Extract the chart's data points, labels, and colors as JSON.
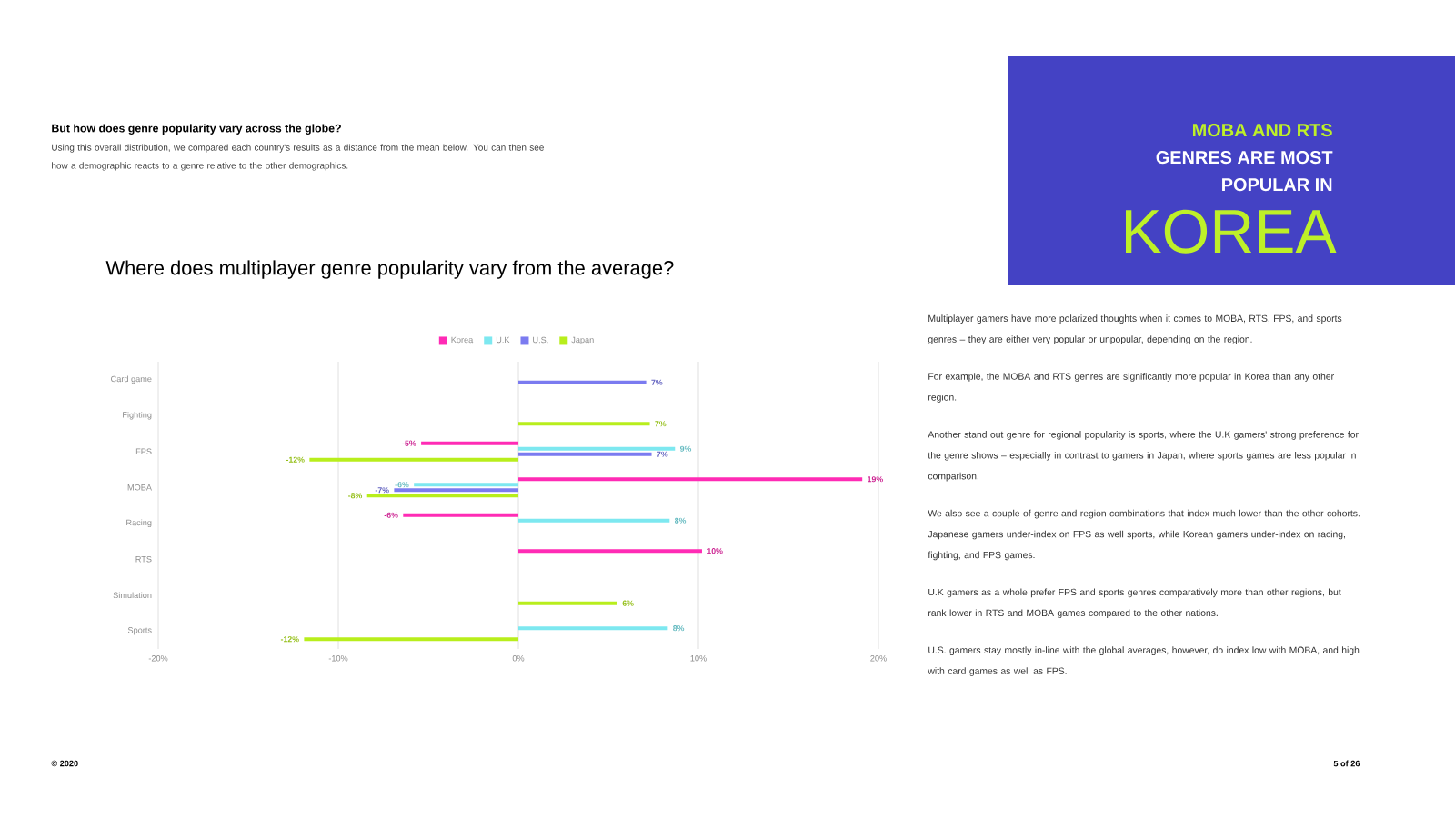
{
  "chart_data": {
    "type": "bar",
    "orientation": "horizontal",
    "title": "Where does multiplayer genre popularity vary from the average?",
    "categories": [
      "Card game",
      "Fighting",
      "FPS",
      "MOBA",
      "Racing",
      "RTS",
      "Simulation",
      "Sports"
    ],
    "series": [
      {
        "name": "Korea",
        "color": "#ff2bb5",
        "values": [
          null,
          null,
          -5.4,
          19.1,
          -6.4,
          10.2,
          null,
          null
        ],
        "value_labels": [
          null,
          null,
          "-5%",
          "19%",
          "-6%",
          "10%",
          null,
          null
        ]
      },
      {
        "name": "U.K",
        "color": "#7de8f0",
        "values": [
          null,
          null,
          8.7,
          -5.8,
          8.4,
          null,
          null,
          8.3
        ],
        "value_labels": [
          null,
          null,
          "9%",
          "-6%",
          "8%",
          null,
          null,
          "8%"
        ]
      },
      {
        "name": "U.S.",
        "color": "#7b7bf0",
        "values": [
          7.1,
          null,
          7.4,
          -6.9,
          null,
          null,
          null,
          null
        ],
        "value_labels": [
          "7%",
          null,
          "7%",
          "-7%",
          null,
          null,
          null,
          null
        ]
      },
      {
        "name": "Japan",
        "color": "#b8ee1c",
        "values": [
          null,
          7.3,
          -11.6,
          -8.4,
          null,
          null,
          5.5,
          -11.9
        ],
        "value_labels": [
          null,
          "7%",
          "-12%",
          "-8%",
          null,
          null,
          "6%",
          "-12%"
        ]
      }
    ],
    "xlim": [
      -20,
      20
    ],
    "xticks": [
      {
        "value": -20,
        "label": "-20%"
      },
      {
        "value": -10,
        "label": "-10%"
      },
      {
        "value": 0,
        "label": "0%"
      },
      {
        "value": 10,
        "label": "10%"
      },
      {
        "value": 20,
        "label": "20%"
      }
    ],
    "grid": "x",
    "legend": "top",
    "annotations": [
      "But how does genre popularity vary across the globe?",
      "Using this overall distribution, we compared each country's results as a distance from the mean below. You can then see how a demographic reacts to a genre relative to the other demographics.",
      "Multiplayer gamers have more polarized thoughts when it comes to MOBA, RTS, FPS, and sports genres – they are either very popular or unpopular, depending on the region.",
      "For example, the MOBA and RTS genres are significantly more popular in Korea than any other region.",
      "Another stand out genre for regional popularity is sports, where the U.K gamers' strong preference for the genre shows – especially in contrast to gamers in Japan, where sports games are less popular in comparison.",
      "We also see a couple of genre and region combinations that index much lower than the other cohorts. Japanese gamers under-index on FPS as well sports, while Korean gamers under-index on racing, fighting, and FPS games.",
      "U.K gamers as a whole prefer FPS and sports genres comparatively more than other regions, but rank lower in RTS and MOBA games compared to the other nations.",
      "U.S. gamers stay mostly in-line with the global averages, however, do index low with MOBA, and high with card games as well as FPS.",
      "MOBA AND RTS",
      "GENRES ARE MOST",
      "POPULAR IN",
      "KOREA",
      "© 2020",
      "5 of 26"
    ]
  }
}
